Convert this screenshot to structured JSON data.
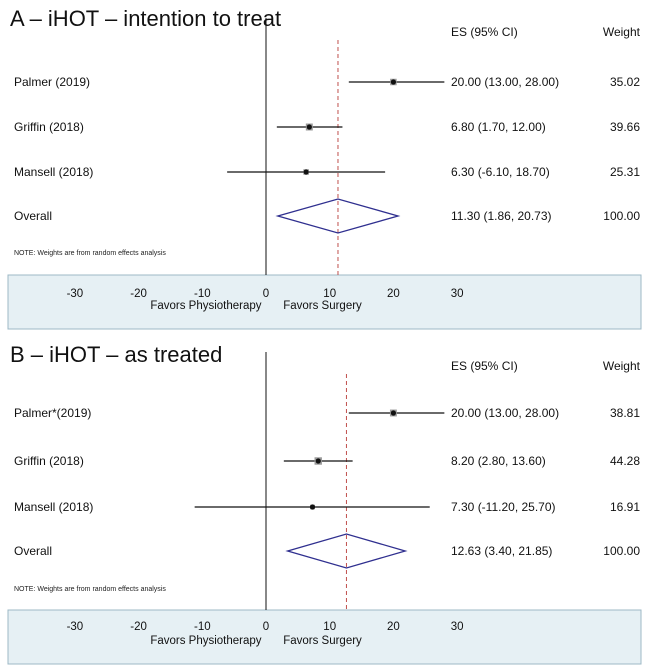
{
  "colors": {
    "axis_band": "#e6f0f4",
    "band_border": "#9db8c6",
    "diamond": "#2f2f8f",
    "ref_line": "#c0504d",
    "ink": "#111111"
  },
  "chart_data": [
    {
      "type": "forest",
      "title": "A – iHOT – intention to treat",
      "col_es": "ES (95% CI)",
      "col_weight": "Weight",
      "note": "NOTE: Weights are from random effects analysis",
      "favor_left": "Favors Physiotherapy",
      "favor_right": "Favors Surgery",
      "xticks": [
        -30,
        -20,
        -10,
        0,
        10,
        20,
        30
      ],
      "xtick_labels": [
        "-30",
        "-20",
        "-10",
        "0",
        "10",
        "20",
        "30"
      ],
      "xlim": [
        -30,
        30
      ],
      "studies": [
        {
          "name": "Palmer (2019)",
          "es": 20.0,
          "lo": 13.0,
          "hi": 28.0,
          "ci_text": "20.00 (13.00, 28.00)",
          "weight": "35.02"
        },
        {
          "name": "Griffin (2018)",
          "es": 6.8,
          "lo": 1.7,
          "hi": 12.0,
          "ci_text": "6.80 (1.70, 12.00)",
          "weight": "39.66"
        },
        {
          "name": "Mansell (2018)",
          "es": 6.3,
          "lo": -6.1,
          "hi": 18.7,
          "ci_text": "6.30 (-6.10, 18.70)",
          "weight": "25.31"
        }
      ],
      "overall": {
        "name": "Overall",
        "es": 11.3,
        "lo": 1.86,
        "hi": 20.73,
        "ci_text": "11.30 (1.86, 20.73)",
        "weight": "100.00"
      }
    },
    {
      "type": "forest",
      "title": "B – iHOT – as treated",
      "col_es": "ES (95% CI)",
      "col_weight": "Weight",
      "note": "NOTE: Weights are from random effects analysis",
      "favor_left": "Favors Physiotherapy",
      "favor_right": "Favors Surgery",
      "xticks": [
        -30,
        -20,
        -10,
        0,
        10,
        20,
        30
      ],
      "xtick_labels": [
        "-30",
        "-20",
        "-10",
        "0",
        "10",
        "20",
        "30"
      ],
      "xlim": [
        -30,
        30
      ],
      "studies": [
        {
          "name": "Palmer*(2019)",
          "es": 20.0,
          "lo": 13.0,
          "hi": 28.0,
          "ci_text": "20.00 (13.00, 28.00)",
          "weight": "38.81"
        },
        {
          "name": "Griffin (2018)",
          "es": 8.2,
          "lo": 2.8,
          "hi": 13.6,
          "ci_text": "8.20 (2.80, 13.60)",
          "weight": "44.28"
        },
        {
          "name": "Mansell (2018)",
          "es": 7.3,
          "lo": -11.2,
          "hi": 25.7,
          "ci_text": "7.30 (-11.20, 25.70)",
          "weight": "16.91"
        }
      ],
      "overall": {
        "name": "Overall",
        "es": 12.63,
        "lo": 3.4,
        "hi": 21.85,
        "ci_text": "12.63 (3.40, 21.85)",
        "weight": "100.00"
      }
    }
  ]
}
